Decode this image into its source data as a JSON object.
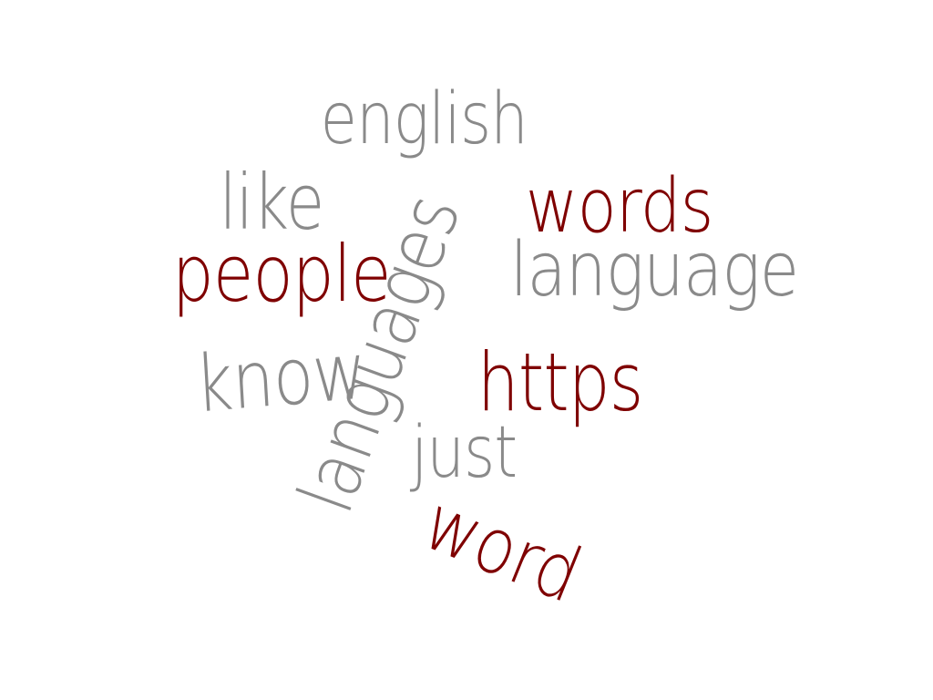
{
  "colors": {
    "background": "#ffffff",
    "gray": "#8a8a8a",
    "red": "#7f0000"
  },
  "words": {
    "english": "english",
    "like": "like",
    "words": "words",
    "people": "people",
    "language": "language",
    "know": "know",
    "https": "https",
    "just": "just",
    "languages": "languages",
    "word": "word"
  }
}
